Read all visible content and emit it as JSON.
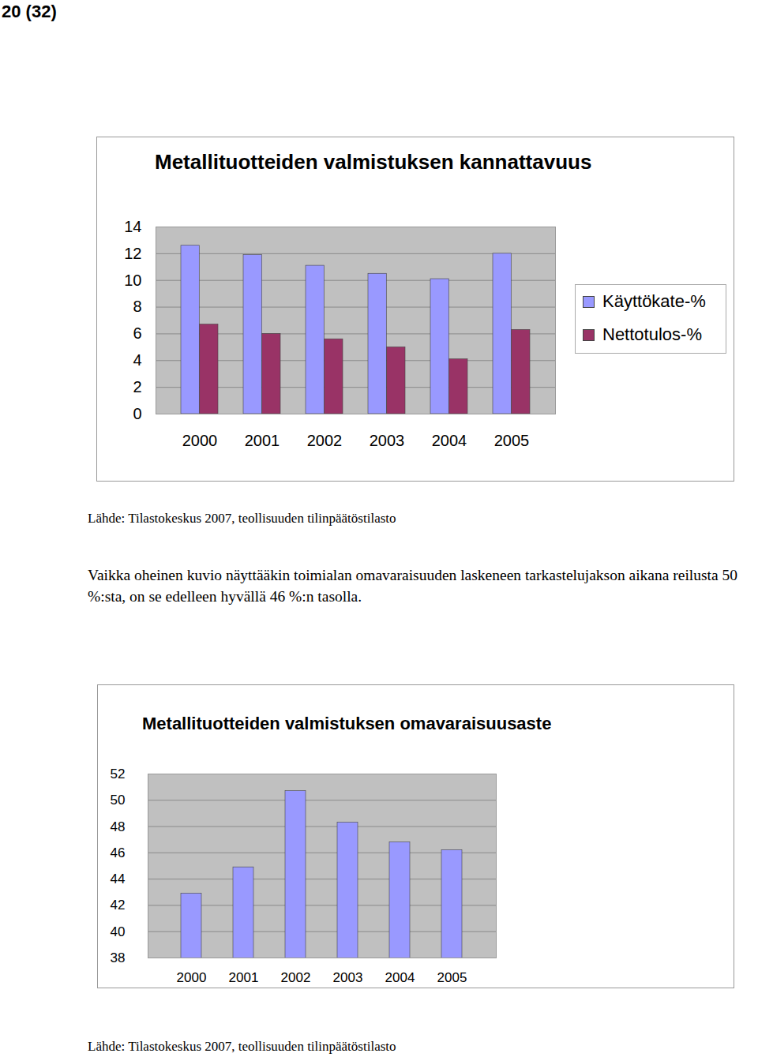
{
  "header": "20 (32)",
  "chart_data": [
    {
      "type": "bar",
      "title": "Metallituotteiden valmistuksen kannattavuus",
      "categories": [
        "2000",
        "2001",
        "2002",
        "2003",
        "2004",
        "2005"
      ],
      "series": [
        {
          "name": "Käyttökate-%",
          "color": "#9999ff",
          "values": [
            12.6,
            11.9,
            11.1,
            10.5,
            10.1,
            12.0
          ]
        },
        {
          "name": "Nettotulos-%",
          "color": "#993366",
          "values": [
            6.7,
            6.0,
            5.6,
            5.0,
            4.1,
            6.3
          ]
        }
      ],
      "ylim": [
        0,
        14
      ],
      "yticks": [
        0,
        2,
        4,
        6,
        8,
        10,
        12,
        14
      ],
      "grid": true,
      "legend": "right",
      "source": "Lähde: Tilastokeskus 2007, teollisuuden tilinpäätöstilasto"
    },
    {
      "type": "bar",
      "title": "Metallituotteiden valmistuksen omavaraisuusaste",
      "categories": [
        "2000",
        "2001",
        "2002",
        "2003",
        "2004",
        "2005"
      ],
      "values": [
        42.9,
        44.9,
        50.7,
        48.3,
        46.8,
        46.2
      ],
      "color": "#9999ff",
      "ylim": [
        38,
        52
      ],
      "yticks": [
        38,
        40,
        42,
        44,
        46,
        48,
        50,
        52
      ],
      "grid": true,
      "source": "Lähde: Tilastokeskus 2007, teollisuuden tilinpäätöstilasto"
    }
  ],
  "text": "Vaikka oheinen kuvio näyttääkin toimialan omavaraisuuden laskeneen tarkastelujakson aikana reilusta 50 %:sta, on se edelleen hyvällä 46 %:n tasolla."
}
